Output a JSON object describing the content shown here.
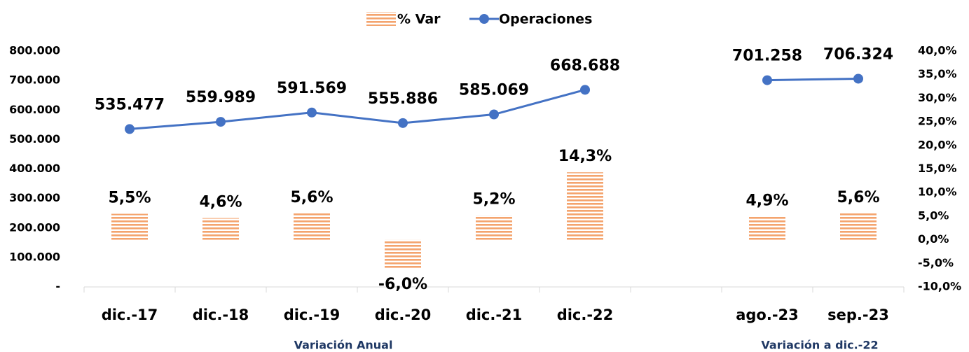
{
  "chart_data": {
    "type": "bar_line",
    "categories": [
      "dic.-17",
      "dic.-18",
      "dic.-19",
      "dic.-20",
      "dic.-21",
      "dic.-22",
      null,
      "ago.-23",
      "sep.-23"
    ],
    "series": [
      {
        "name": "% Var",
        "type": "bar",
        "axis": "y2",
        "color": "#f4a46e",
        "values": [
          5.5,
          4.6,
          5.6,
          -6.0,
          5.2,
          14.3,
          null,
          4.9,
          5.6
        ],
        "value_labels": [
          "5,5%",
          "4,6%",
          "5,6%",
          "-6,0%",
          "5,2%",
          "14,3%",
          null,
          "4,9%",
          "5,6%"
        ]
      },
      {
        "name": "Operaciones",
        "type": "line",
        "axis": "y",
        "color": "#4472c4",
        "values": [
          535477,
          559989,
          591569,
          555886,
          585069,
          668688,
          null,
          701258,
          706324
        ],
        "value_labels": [
          "535.477",
          "559.989",
          "591.569",
          "555.886",
          "585.069",
          "668.688",
          null,
          "701.258",
          "706.324"
        ]
      }
    ],
    "ylim": [
      0,
      800000
    ],
    "yticks": [
      {
        "value": 0,
        "label": "-"
      },
      {
        "value": 100000,
        "label": "100.000"
      },
      {
        "value": 200000,
        "label": "200.000"
      },
      {
        "value": 300000,
        "label": "300.000"
      },
      {
        "value": 400000,
        "label": "400.000"
      },
      {
        "value": 500000,
        "label": "500.000"
      },
      {
        "value": 600000,
        "label": "600.000"
      },
      {
        "value": 700000,
        "label": "700.000"
      },
      {
        "value": 800000,
        "label": "800.000"
      }
    ],
    "y2lim": [
      -10,
      40
    ],
    "y2ticks": [
      {
        "value": -10,
        "label": "-10,0%"
      },
      {
        "value": -5,
        "label": "-5,0%"
      },
      {
        "value": 0,
        "label": "0,0%"
      },
      {
        "value": 5,
        "label": "5,0%"
      },
      {
        "value": 10,
        "label": "10,0%"
      },
      {
        "value": 15,
        "label": "15,0%"
      },
      {
        "value": 20,
        "label": "20,0%"
      },
      {
        "value": 25,
        "label": "25,0%"
      },
      {
        "value": 30,
        "label": "30,0%"
      },
      {
        "value": 35,
        "label": "35,0%"
      },
      {
        "value": 40,
        "label": "40,0%"
      }
    ],
    "group_labels": [
      "Variación  Anual",
      "Variación  a dic.-22"
    ],
    "legend": "top"
  }
}
